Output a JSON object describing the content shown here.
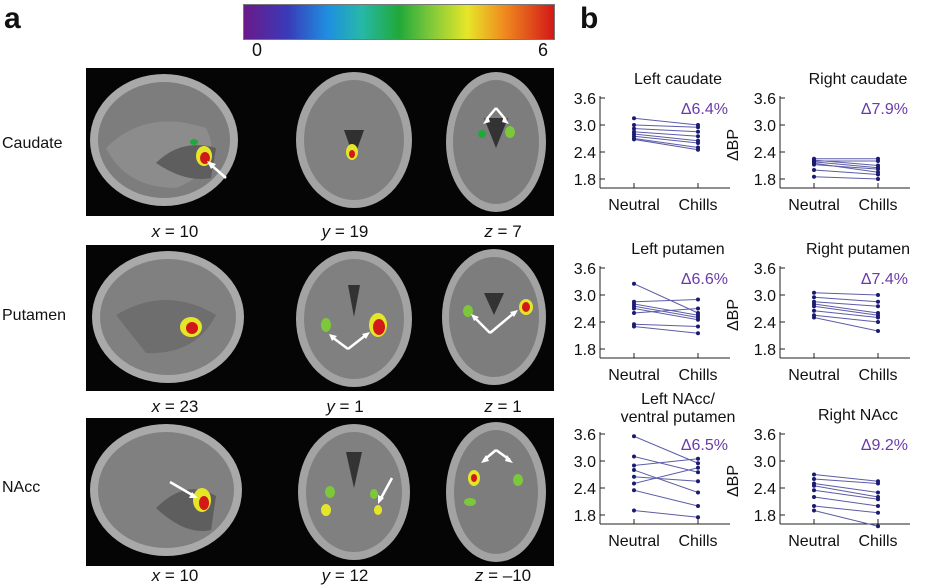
{
  "panel_a": {
    "letter": "a",
    "colorbar": {
      "min_label": "0",
      "max_label": "6"
    },
    "rows": [
      {
        "label": "Caudate",
        "coords": [
          {
            "axis": "x",
            "value": "10"
          },
          {
            "axis": "y",
            "value": "19"
          },
          {
            "axis": "z",
            "value": "7"
          }
        ]
      },
      {
        "label": "Putamen",
        "coords": [
          {
            "axis": "x",
            "value": "23"
          },
          {
            "axis": "y",
            "value": "1"
          },
          {
            "axis": "z",
            "value": "1"
          }
        ]
      },
      {
        "label": "NAcc",
        "coords": [
          {
            "axis": "x",
            "value": "10"
          },
          {
            "axis": "y",
            "value": "12"
          },
          {
            "axis": "z",
            "value": "–10"
          }
        ]
      }
    ]
  },
  "panel_b": {
    "letter": "b"
  },
  "chart_data": [
    {
      "type": "line",
      "title": "Left caudate",
      "annotation": "Δ6.4%",
      "ylabel": "ΔBP",
      "categories": [
        "Neutral",
        "Chills"
      ],
      "yticks": [
        "3.6",
        "3.0",
        "2.4",
        "1.8"
      ],
      "ylim": [
        1.6,
        3.6
      ],
      "series": [
        {
          "values": [
            3.15,
            3.0
          ]
        },
        {
          "values": [
            3.0,
            2.95
          ]
        },
        {
          "values": [
            2.92,
            2.85
          ]
        },
        {
          "values": [
            2.85,
            2.75
          ]
        },
        {
          "values": [
            2.8,
            2.65
          ]
        },
        {
          "values": [
            2.75,
            2.6
          ]
        },
        {
          "values": [
            2.7,
            2.5
          ]
        },
        {
          "values": [
            2.68,
            2.45
          ]
        }
      ]
    },
    {
      "type": "line",
      "title": "Right caudate",
      "annotation": "Δ7.9%",
      "ylabel": "ΔBP",
      "categories": [
        "Neutral",
        "Chills"
      ],
      "yticks": [
        "3.6",
        "3.0",
        "2.4",
        "1.8"
      ],
      "ylim": [
        1.6,
        3.6
      ],
      "series": [
        {
          "values": [
            2.25,
            2.25
          ]
        },
        {
          "values": [
            2.22,
            2.1
          ]
        },
        {
          "values": [
            2.2,
            2.2
          ]
        },
        {
          "values": [
            2.18,
            2.05
          ]
        },
        {
          "values": [
            2.15,
            1.95
          ]
        },
        {
          "values": [
            2.12,
            2.02
          ]
        },
        {
          "values": [
            2.0,
            1.9
          ]
        },
        {
          "values": [
            1.85,
            1.8
          ]
        }
      ]
    },
    {
      "type": "line",
      "title": "Left putamen",
      "annotation": "Δ6.6%",
      "ylabel": "ΔBP",
      "categories": [
        "Neutral",
        "Chills"
      ],
      "yticks": [
        "3.6",
        "3.0",
        "2.4",
        "1.8"
      ],
      "ylim": [
        1.6,
        3.6
      ],
      "series": [
        {
          "values": [
            3.25,
            2.6
          ]
        },
        {
          "values": [
            2.85,
            2.9
          ]
        },
        {
          "values": [
            2.8,
            2.55
          ]
        },
        {
          "values": [
            2.75,
            2.5
          ]
        },
        {
          "values": [
            2.7,
            2.45
          ]
        },
        {
          "values": [
            2.6,
            2.7
          ]
        },
        {
          "values": [
            2.35,
            2.3
          ]
        },
        {
          "values": [
            2.3,
            2.15
          ]
        }
      ]
    },
    {
      "type": "line",
      "title": "Right putamen",
      "annotation": "Δ7.4%",
      "ylabel": "ΔBP",
      "categories": [
        "Neutral",
        "Chills"
      ],
      "yticks": [
        "3.6",
        "3.0",
        "2.4",
        "1.8"
      ],
      "ylim": [
        1.6,
        3.6
      ],
      "series": [
        {
          "values": [
            3.05,
            3.0
          ]
        },
        {
          "values": [
            2.95,
            2.85
          ]
        },
        {
          "values": [
            2.85,
            2.75
          ]
        },
        {
          "values": [
            2.8,
            2.6
          ]
        },
        {
          "values": [
            2.75,
            2.55
          ]
        },
        {
          "values": [
            2.65,
            2.5
          ]
        },
        {
          "values": [
            2.55,
            2.4
          ]
        },
        {
          "values": [
            2.5,
            2.2
          ]
        }
      ]
    },
    {
      "type": "line",
      "title": "Left NAcc/ventral putamen",
      "annotation": "Δ6.5%",
      "ylabel": "ΔBP",
      "categories": [
        "Neutral",
        "Chills"
      ],
      "yticks": [
        "3.6",
        "3.0",
        "2.4",
        "1.8"
      ],
      "ylim": [
        1.6,
        3.6
      ],
      "series": [
        {
          "values": [
            3.55,
            2.95
          ]
        },
        {
          "values": [
            3.1,
            2.75
          ]
        },
        {
          "values": [
            2.9,
            3.05
          ]
        },
        {
          "values": [
            2.8,
            2.3
          ]
        },
        {
          "values": [
            2.65,
            2.55
          ]
        },
        {
          "values": [
            2.5,
            2.85
          ]
        },
        {
          "values": [
            2.35,
            2.0
          ]
        },
        {
          "values": [
            1.9,
            1.75
          ]
        }
      ]
    },
    {
      "type": "line",
      "title": "Right NAcc",
      "annotation": "Δ9.2%",
      "ylabel": "ΔBP",
      "categories": [
        "Neutral",
        "Chills"
      ],
      "yticks": [
        "3.6",
        "3.0",
        "2.4",
        "1.8"
      ],
      "ylim": [
        1.6,
        3.6
      ],
      "series": [
        {
          "values": [
            2.7,
            2.55
          ]
        },
        {
          "values": [
            2.6,
            2.5
          ]
        },
        {
          "values": [
            2.5,
            2.3
          ]
        },
        {
          "values": [
            2.45,
            2.2
          ]
        },
        {
          "values": [
            2.35,
            2.15
          ]
        },
        {
          "values": [
            2.2,
            2.0
          ]
        },
        {
          "values": [
            2.0,
            1.85
          ]
        },
        {
          "values": [
            1.9,
            1.55
          ]
        }
      ]
    }
  ],
  "colors": {
    "plot_line": "#5c5ca8",
    "plot_dot": "#1a1a70",
    "annotation": "#6a3aa8",
    "arrow": "#ffffff"
  }
}
